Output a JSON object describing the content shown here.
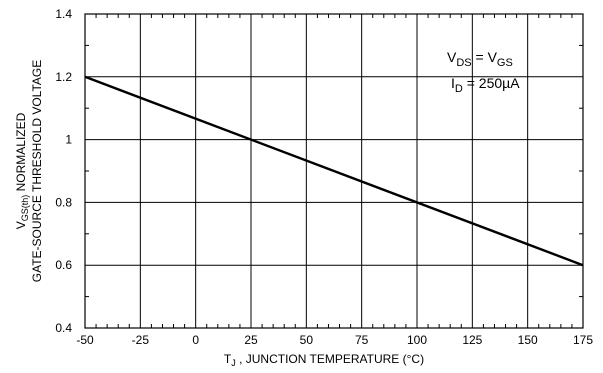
{
  "chart_data": {
    "type": "line",
    "title": "",
    "xlabel": {
      "main": "T",
      "sub": "J",
      "rest": " , JUNCTION TEMPERATURE (°C)"
    },
    "ylabel": {
      "line1_main": "V",
      "line1_sub": "GS(th)",
      "line1_rest": "  NORMALIZED",
      "line2": "GATE-SOURCE THRESHOLD VOLTAGE"
    },
    "xlim": [
      -50,
      175
    ],
    "ylim": [
      0.4,
      1.4
    ],
    "x_ticks": [
      -50,
      -25,
      0,
      25,
      50,
      75,
      100,
      125,
      150,
      175
    ],
    "x_tick_labels": [
      "-50",
      "-25",
      "0",
      "25",
      "50",
      "75",
      "100",
      "125",
      "150",
      "175"
    ],
    "y_ticks": [
      0.4,
      0.6,
      0.8,
      1.0,
      1.2,
      1.4
    ],
    "y_tick_labels": [
      "0.4",
      "0.6",
      "0.8",
      "1",
      "1.2",
      "1.4"
    ],
    "grid": true,
    "series": [
      {
        "x": [
          -50,
          175
        ],
        "y": [
          1.2,
          0.6
        ]
      }
    ],
    "annotations": [
      {
        "main": "V",
        "sub": "DS",
        "mid": "  = V",
        "sub2": "GS"
      },
      {
        "main": "I",
        "sub": "D",
        "mid": "  = 250µA",
        "sub2": ""
      }
    ]
  }
}
